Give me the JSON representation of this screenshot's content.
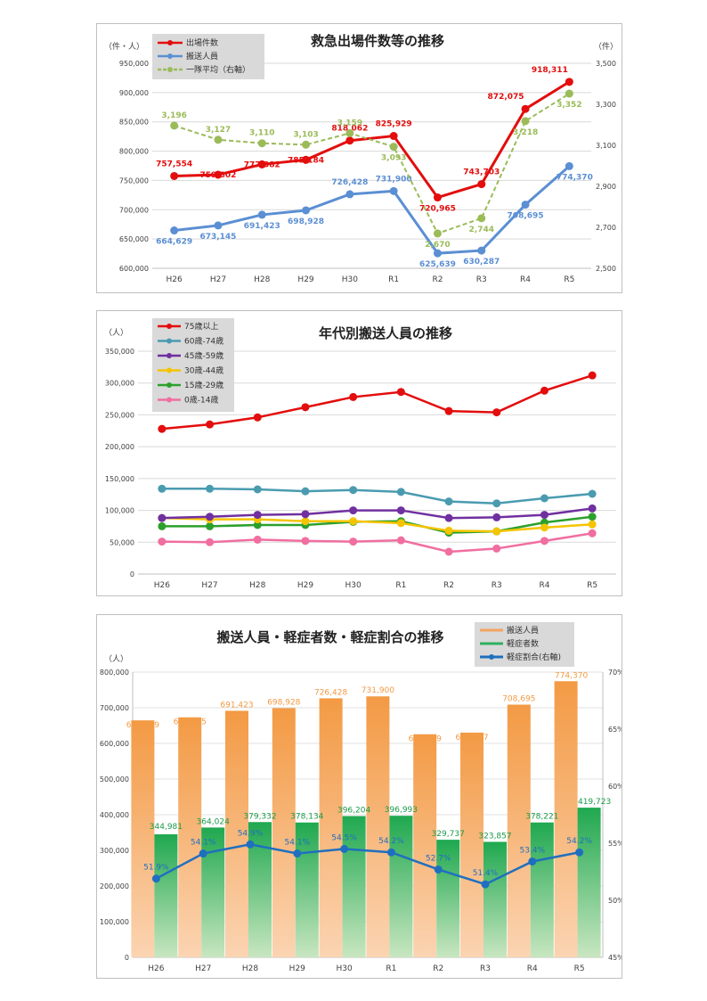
{
  "chart_data": [
    {
      "type": "line",
      "title": "救急出場件数等の推移",
      "y_unit_left": "（件・人）",
      "y_unit_right": "（件）",
      "categories": [
        "H26",
        "H27",
        "H28",
        "H29",
        "H30",
        "R1",
        "R2",
        "R3",
        "R4",
        "R5"
      ],
      "ylim_left": [
        600000,
        950000
      ],
      "ylim_right": [
        2500,
        3500
      ],
      "yticks_left": [
        "600,000",
        "650,000",
        "700,000",
        "750,000",
        "800,000",
        "850,000",
        "900,000",
        "950,000"
      ],
      "yticks_right": [
        "2,500",
        "2,700",
        "2,900",
        "3,100",
        "3,300",
        "3,500"
      ],
      "series": [
        {
          "name": "出場件数",
          "color": "#e30d0d",
          "axis": "left",
          "dashed": false,
          "values": [
            757554,
            759802,
            777382,
            785184,
            818062,
            825929,
            720965,
            743703,
            872075,
            918311
          ],
          "labels": [
            "757,554",
            "759,802",
            "777,382",
            "785,184",
            "818,062",
            "825,929",
            "720,965",
            "743,703",
            "872,075",
            "918,311"
          ]
        },
        {
          "name": "搬送人員",
          "color": "#5b8fd3",
          "axis": "left",
          "dashed": false,
          "values": [
            664629,
            673145,
            691423,
            698928,
            726428,
            731900,
            625639,
            630287,
            708695,
            774370
          ],
          "labels": [
            "664,629",
            "673,145",
            "691,423",
            "698,928",
            "726,428",
            "731,900",
            "625,639",
            "630,287",
            "708,695",
            "774,370"
          ]
        },
        {
          "name": "一隊平均（右軸）",
          "color": "#9bbb59",
          "axis": "right",
          "dashed": true,
          "values": [
            3196,
            3127,
            3110,
            3103,
            3159,
            3093,
            2670,
            2744,
            3218,
            3352
          ],
          "labels": [
            "3,196",
            "3,127",
            "3,110",
            "3,103",
            "3,159",
            "3,093",
            "2,670",
            "2,744",
            "3,218",
            "3,352"
          ]
        }
      ]
    },
    {
      "type": "line",
      "title": "年代別搬送人員の推移",
      "y_unit_left": "（人）",
      "categories": [
        "H26",
        "H27",
        "H28",
        "H29",
        "H30",
        "R1",
        "R2",
        "R3",
        "R4",
        "R5"
      ],
      "ylim": [
        0,
        350000
      ],
      "yticks": [
        "0",
        "50,000",
        "100,000",
        "150,000",
        "200,000",
        "250,000",
        "300,000",
        "350,000"
      ],
      "series": [
        {
          "name": "75歳以上",
          "color": "#e30d0d",
          "values": [
            228000,
            235000,
            246000,
            262000,
            278000,
            286000,
            256000,
            254000,
            288000,
            312000
          ]
        },
        {
          "name": "60歳-74歳",
          "color": "#4a9bb0",
          "values": [
            134000,
            134000,
            133000,
            130000,
            132000,
            129000,
            114000,
            111000,
            119000,
            126000
          ]
        },
        {
          "name": "45歳-59歳",
          "color": "#7030a0",
          "values": [
            88000,
            90000,
            93000,
            94000,
            100000,
            100000,
            88000,
            89000,
            93000,
            103000
          ]
        },
        {
          "name": "30歳-44歳",
          "color": "#f5c400",
          "values": [
            88000,
            86000,
            86000,
            83000,
            83000,
            80000,
            68000,
            67000,
            73000,
            78000
          ]
        },
        {
          "name": "15歳-29歳",
          "color": "#2ca02c",
          "values": [
            75000,
            75000,
            77000,
            77000,
            82000,
            83000,
            65000,
            67000,
            81000,
            90000
          ]
        },
        {
          "name": "0歳-14歳",
          "color": "#f06ea0",
          "values": [
            51000,
            50000,
            54000,
            52000,
            51000,
            53000,
            35000,
            40000,
            52000,
            64000
          ]
        }
      ]
    },
    {
      "type": "bar",
      "title": "搬送人員・軽症者数・軽症割合の推移",
      "y_unit_left": "（人）",
      "categories": [
        "H26",
        "H27",
        "H28",
        "H29",
        "H30",
        "R1",
        "R2",
        "R3",
        "R4",
        "R5"
      ],
      "ylim_left": [
        0,
        800000
      ],
      "ylim_right": [
        45,
        70
      ],
      "yticks_left": [
        "0",
        "100,000",
        "200,000",
        "300,000",
        "400,000",
        "500,000",
        "600,000",
        "700,000",
        "800,000"
      ],
      "yticks_right": [
        "45%",
        "50%",
        "55%",
        "60%",
        "65%",
        "70%"
      ],
      "series": [
        {
          "name": "搬送人員",
          "color": "#f4a460",
          "kind": "bar",
          "values": [
            664629,
            673145,
            691423,
            698928,
            726428,
            731900,
            625639,
            630287,
            708695,
            774370
          ],
          "labels": [
            "664,629",
            "673,145",
            "691,423",
            "698,928",
            "726,428",
            "731,900",
            "625,639",
            "630,287",
            "708,695",
            "774,370"
          ]
        },
        {
          "name": "軽症者数",
          "color": "#2eb060",
          "kind": "bar",
          "values": [
            344981,
            364024,
            379332,
            378134,
            396204,
            396993,
            329737,
            323857,
            378221,
            419723
          ],
          "labels": [
            "344,981",
            "364,024",
            "379,332",
            "378,134",
            "396,204",
            "396,993",
            "329,737",
            "323,857",
            "378,221",
            "419,723"
          ]
        },
        {
          "name": "軽症割合(右軸)",
          "color": "#1f6fbf",
          "kind": "line",
          "values": [
            51.9,
            54.1,
            54.9,
            54.1,
            54.5,
            54.2,
            52.7,
            51.4,
            53.4,
            54.2
          ],
          "labels": [
            "51.9%",
            "54.1%",
            "54.9%",
            "54.1%",
            "54.5%",
            "54.2%",
            "52.7%",
            "51.4%",
            "53.4%",
            "54.2%"
          ]
        }
      ]
    }
  ]
}
